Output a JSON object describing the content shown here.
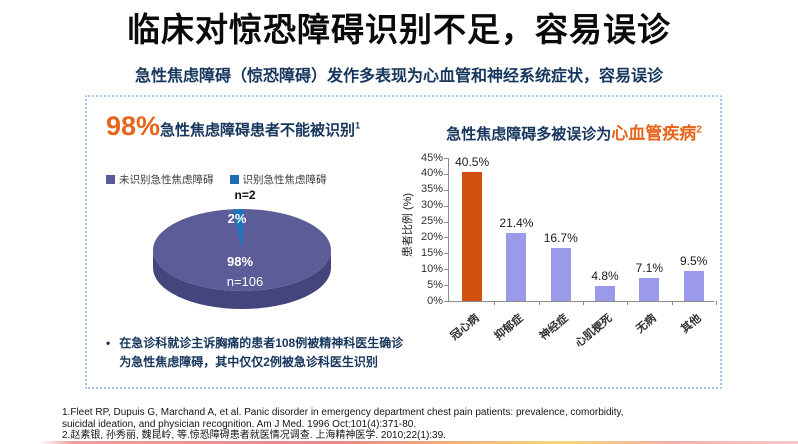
{
  "slide": {
    "title": "临床对惊恐障碍识别不足，容易误诊",
    "subtitle": "急性焦虑障碍（惊恐障碍）发作多表现为心血管和神经系统症状，容易误诊"
  },
  "left_panel": {
    "headline_pct": "98%",
    "headline_text": "急性焦虑障碍患者不能被识别",
    "headline_sup": "1",
    "legend": [
      {
        "label": "未识别急性焦虑障碍",
        "color": "#5a5a96"
      },
      {
        "label": "识别急性焦虑障碍",
        "color": "#1f6fb5"
      }
    ],
    "pie_annotation_top": "n=2",
    "pie_label_small": "2%",
    "pie_label_big": "98%",
    "pie_label_n": "n=106",
    "bullet": "在急诊科就诊主诉胸痛的患者108例被精神科医生确诊为急性焦虑障碍，其中仅仅2例被急诊科医生识别"
  },
  "right_panel": {
    "headline_prefix": "急性焦虑障碍多被误诊为",
    "headline_highlight": "心血管疾病",
    "headline_sup": "2"
  },
  "chart_data": [
    {
      "type": "pie",
      "style": "3d",
      "title": "98%急性焦虑障碍患者不能被识别",
      "slices": [
        {
          "label": "未识别急性焦虑障碍",
          "value_pct": 98,
          "n": 106,
          "color": "#5c5c99",
          "side_color": "#45457d"
        },
        {
          "label": "识别急性焦虑障碍",
          "value_pct": 2,
          "n": 2,
          "color": "#1b75bc"
        }
      ],
      "annotations": [
        "n=2",
        "2%",
        "98%",
        "n=106"
      ]
    },
    {
      "type": "bar",
      "title": "急性焦虑障碍多被误诊为心血管疾病",
      "categories": [
        "冠心病",
        "抑郁症",
        "神经症",
        "心肌梗死",
        "无病",
        "其他"
      ],
      "values": [
        40.5,
        21.4,
        16.7,
        4.8,
        7.1,
        9.5
      ],
      "bar_labels": [
        "40.5%",
        "21.4%",
        "16.7%",
        "4.8%",
        "7.1%",
        "9.5%"
      ],
      "bar_colors": [
        "#d4500f",
        "#9a9ae8",
        "#9a9ae8",
        "#9a9ae8",
        "#9a9ae8",
        "#9a9ae8"
      ],
      "ylabel": "患者比例 (%)",
      "ylim": [
        0,
        45
      ],
      "yticks": [
        "0%",
        "5%",
        "10%",
        "15%",
        "20%",
        "25%",
        "30%",
        "35%",
        "40%",
        "45%"
      ],
      "grid": false,
      "legend_position": "none"
    }
  ],
  "references": [
    "1.Fleet RP, Dupuis G, Marchand A, et al. Panic disorder in emergency department chest pain patients: prevalence, comorbidity,",
    "suicidal ideation, and physician recognition. Am J Med. 1996 Oct;101(4):371-80.",
    "2.赵素银, 孙秀丽, 魏昆岭, 等.惊恐障碍患者就医情况调查. 上海精神医学. 2010;22(1):39."
  ],
  "colors": {
    "accent_orange": "#e8641b",
    "navy": "#17365d",
    "bar_highlight": "#d4500f",
    "bar_default": "#9a9ae8",
    "pie_main": "#5c5c99",
    "pie_small": "#1b75bc",
    "box_border": "#9fc2e2"
  }
}
